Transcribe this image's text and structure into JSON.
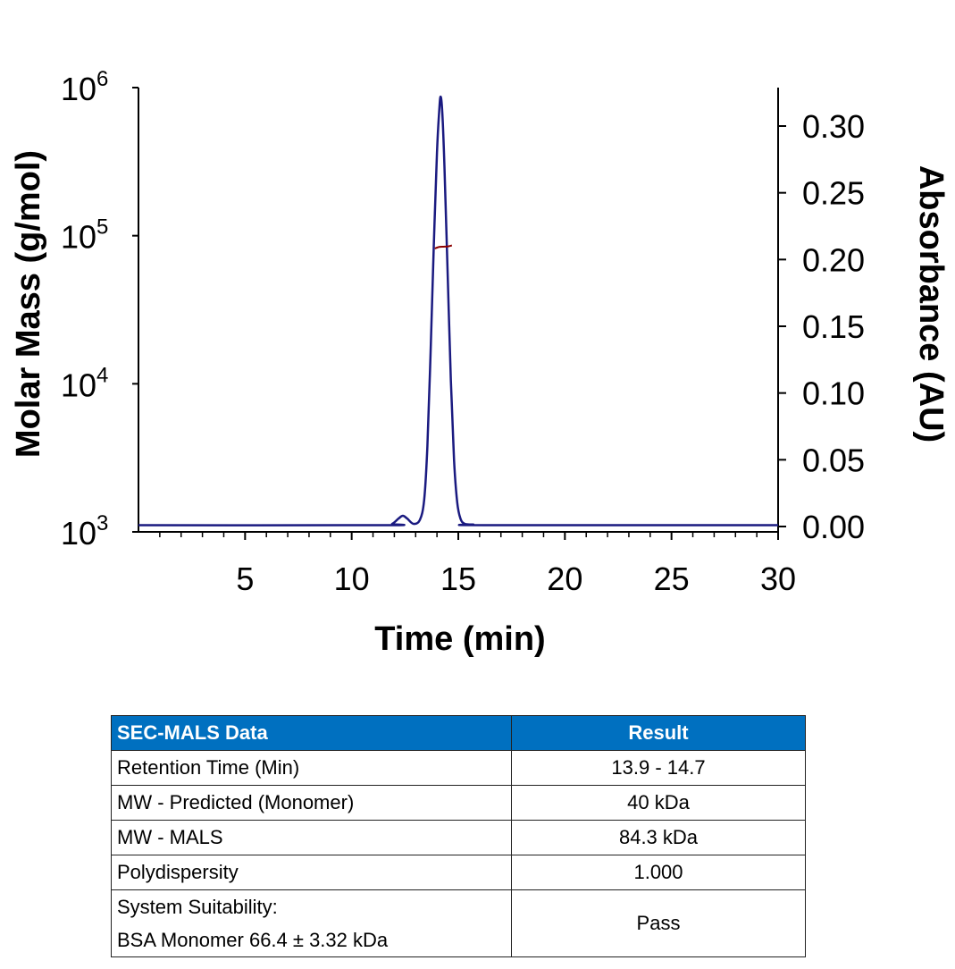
{
  "chart_data": {
    "type": "line",
    "xlabel": "Time (min)",
    "ylabel_left": "Molar Mass (g/mol)",
    "ylabel_right": "Absorbance (AU)",
    "xlim": [
      0,
      30
    ],
    "x_ticks": [
      "5",
      "10",
      "15",
      "20",
      "25",
      "30"
    ],
    "x_tick_values": [
      5,
      10,
      15,
      20,
      25,
      30
    ],
    "y_left_scale": "log",
    "y_left_lim": [
      1000,
      1000000
    ],
    "y_left_ticks": [
      {
        "base": "10",
        "exp": "3",
        "value": 1000
      },
      {
        "base": "10",
        "exp": "4",
        "value": 10000
      },
      {
        "base": "10",
        "exp": "5",
        "value": 100000
      },
      {
        "base": "10",
        "exp": "6",
        "value": 1000000
      }
    ],
    "y_right_lim": [
      0,
      0.33
    ],
    "y_right_ticks": [
      "0.00",
      "0.05",
      "0.10",
      "0.15",
      "0.20",
      "0.25",
      "0.30"
    ],
    "y_right_tick_values": [
      0,
      0.05,
      0.1,
      0.15,
      0.2,
      0.25,
      0.3
    ],
    "grid": false,
    "series": [
      {
        "axis": "right",
        "color": "#1a1a80",
        "x": [
          0,
          11.5,
          11.9,
          12.2,
          12.4,
          12.6,
          12.9,
          13.2,
          13.4,
          13.55,
          13.7,
          13.85,
          14.0,
          14.1,
          14.17,
          14.25,
          14.35,
          14.5,
          14.65,
          14.8,
          14.95,
          15.1,
          15.3,
          15.7,
          16.2,
          30
        ],
        "y": [
          0.001,
          0.001,
          0.002,
          0.006,
          0.008,
          0.006,
          0.002,
          0.005,
          0.02,
          0.06,
          0.13,
          0.21,
          0.28,
          0.31,
          0.322,
          0.31,
          0.27,
          0.19,
          0.11,
          0.05,
          0.018,
          0.006,
          0.002,
          0.0015,
          0.001,
          0.001
        ]
      },
      {
        "axis": "left",
        "color": "#8b0000",
        "x": [
          13.9,
          14.1,
          14.3,
          14.5,
          14.7
        ],
        "y": [
          82000,
          84000,
          84300,
          84500,
          86000
        ]
      }
    ]
  },
  "table": {
    "headers": [
      "SEC-MALS Data",
      "Result"
    ],
    "rows": [
      {
        "label": "Retention Time (Min)",
        "value": "13.9 - 14.7"
      },
      {
        "label": "MW - Predicted (Monomer)",
        "value": "40 kDa"
      },
      {
        "label": "MW - MALS",
        "value": "84.3 kDa"
      },
      {
        "label": "Polydispersity",
        "value": "1.000"
      }
    ],
    "last_row": {
      "label_line1": "System Suitability:",
      "label_line2": "BSA Monomer 66.4 ± 3.32 kDa",
      "value": "Pass"
    }
  }
}
